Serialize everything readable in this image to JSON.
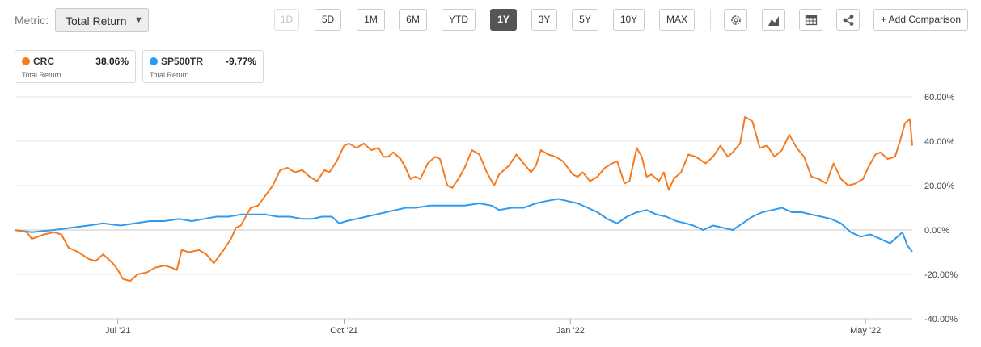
{
  "toolbar": {
    "metric_label": "Metric:",
    "metric_value": "Total Return",
    "periods": [
      "1D",
      "5D",
      "1M",
      "6M",
      "YTD",
      "1Y",
      "3Y",
      "5Y",
      "10Y",
      "MAX"
    ],
    "active_period": "1Y",
    "disabled_period": "1D",
    "add_comparison": "+ Add Comparison",
    "icons": [
      "gear-icon",
      "area-chart-icon",
      "table-icon",
      "share-icon"
    ]
  },
  "legend": [
    {
      "ticker": "CRC",
      "value": "38.06%",
      "sub": "Total Return",
      "color": "#f47b20"
    },
    {
      "ticker": "SP500TR",
      "value": "-9.77%",
      "sub": "Total Return",
      "color": "#2e9bf0"
    }
  ],
  "chart_data": {
    "type": "line",
    "ylim": [
      -40,
      60
    ],
    "y_ticks": [
      60,
      40,
      20,
      0,
      -20,
      -40
    ],
    "y_tick_labels": [
      "60.00%",
      "40.00%",
      "20.00%",
      "0.00%",
      "-20.00%",
      "-40.00%"
    ],
    "x_ticks": [
      "Jul '21",
      "Oct '21",
      "Jan '22",
      "May '22"
    ],
    "x_tick_positions": [
      "2021-07-01",
      "2021-10-01",
      "2022-01-01",
      "2022-05-01"
    ],
    "x_range": [
      "2021-05-20",
      "2022-05-20"
    ],
    "grid": true,
    "series": [
      {
        "name": "CRC",
        "color": "#f47b20",
        "points": [
          [
            "2021-05-20",
            0
          ],
          [
            "2021-05-25",
            -1
          ],
          [
            "2021-05-27",
            -4
          ],
          [
            "2021-06-01",
            -2
          ],
          [
            "2021-06-05",
            -1
          ],
          [
            "2021-06-08",
            -2
          ],
          [
            "2021-06-11",
            -8
          ],
          [
            "2021-06-15",
            -10
          ],
          [
            "2021-06-19",
            -13
          ],
          [
            "2021-06-22",
            -14
          ],
          [
            "2021-06-25",
            -11
          ],
          [
            "2021-06-29",
            -15
          ],
          [
            "2021-07-01",
            -18
          ],
          [
            "2021-07-03",
            -22
          ],
          [
            "2021-07-06",
            -23
          ],
          [
            "2021-07-09",
            -20
          ],
          [
            "2021-07-13",
            -19
          ],
          [
            "2021-07-16",
            -17
          ],
          [
            "2021-07-20",
            -16
          ],
          [
            "2021-07-23",
            -17
          ],
          [
            "2021-07-25",
            -18
          ],
          [
            "2021-07-27",
            -9
          ],
          [
            "2021-07-30",
            -10
          ],
          [
            "2021-08-03",
            -9
          ],
          [
            "2021-08-06",
            -11
          ],
          [
            "2021-08-09",
            -15
          ],
          [
            "2021-08-13",
            -9
          ],
          [
            "2021-08-16",
            -4
          ],
          [
            "2021-08-18",
            1
          ],
          [
            "2021-08-20",
            2
          ],
          [
            "2021-08-24",
            10
          ],
          [
            "2021-08-27",
            11
          ],
          [
            "2021-08-31",
            17
          ],
          [
            "2021-09-02",
            20
          ],
          [
            "2021-09-05",
            27
          ],
          [
            "2021-09-08",
            28
          ],
          [
            "2021-09-11",
            26
          ],
          [
            "2021-09-14",
            27
          ],
          [
            "2021-09-17",
            24
          ],
          [
            "2021-09-20",
            22
          ],
          [
            "2021-09-23",
            27
          ],
          [
            "2021-09-25",
            26
          ],
          [
            "2021-09-28",
            31
          ],
          [
            "2021-10-01",
            38
          ],
          [
            "2021-10-03",
            39
          ],
          [
            "2021-10-06",
            37
          ],
          [
            "2021-10-09",
            39
          ],
          [
            "2021-10-12",
            36
          ],
          [
            "2021-10-15",
            37
          ],
          [
            "2021-10-17",
            33
          ],
          [
            "2021-10-19",
            33
          ],
          [
            "2021-10-21",
            35
          ],
          [
            "2021-10-24",
            32
          ],
          [
            "2021-10-26",
            28
          ],
          [
            "2021-10-28",
            23
          ],
          [
            "2021-10-30",
            24
          ],
          [
            "2021-11-01",
            23
          ],
          [
            "2021-11-04",
            30
          ],
          [
            "2021-11-07",
            33
          ],
          [
            "2021-11-09",
            32
          ],
          [
            "2021-11-12",
            20
          ],
          [
            "2021-11-14",
            19
          ],
          [
            "2021-11-17",
            24
          ],
          [
            "2021-11-19",
            28
          ],
          [
            "2021-11-22",
            36
          ],
          [
            "2021-11-25",
            34
          ],
          [
            "2021-11-28",
            26
          ],
          [
            "2021-12-01",
            20
          ],
          [
            "2021-12-03",
            25
          ],
          [
            "2021-12-07",
            29
          ],
          [
            "2021-12-10",
            34
          ],
          [
            "2021-12-13",
            30
          ],
          [
            "2021-12-16",
            26
          ],
          [
            "2021-12-18",
            29
          ],
          [
            "2021-12-20",
            36
          ],
          [
            "2021-12-23",
            34
          ],
          [
            "2021-12-26",
            33
          ],
          [
            "2021-12-29",
            31
          ],
          [
            "2022-01-02",
            25
          ],
          [
            "2022-01-04",
            24
          ],
          [
            "2022-01-06",
            26
          ],
          [
            "2022-01-09",
            22
          ],
          [
            "2022-01-12",
            24
          ],
          [
            "2022-01-15",
            28
          ],
          [
            "2022-01-18",
            30
          ],
          [
            "2022-01-20",
            31
          ],
          [
            "2022-01-23",
            21
          ],
          [
            "2022-01-25",
            22
          ],
          [
            "2022-01-28",
            37
          ],
          [
            "2022-01-30",
            33
          ],
          [
            "2022-02-01",
            24
          ],
          [
            "2022-02-03",
            25
          ],
          [
            "2022-02-06",
            22
          ],
          [
            "2022-02-08",
            26
          ],
          [
            "2022-02-10",
            18
          ],
          [
            "2022-02-12",
            23
          ],
          [
            "2022-02-15",
            26
          ],
          [
            "2022-02-18",
            34
          ],
          [
            "2022-02-21",
            33
          ],
          [
            "2022-02-25",
            30
          ],
          [
            "2022-02-28",
            33
          ],
          [
            "2022-03-03",
            38
          ],
          [
            "2022-03-06",
            33
          ],
          [
            "2022-03-08",
            35
          ],
          [
            "2022-03-11",
            39
          ],
          [
            "2022-03-13",
            51
          ],
          [
            "2022-03-16",
            49
          ],
          [
            "2022-03-19",
            37
          ],
          [
            "2022-03-22",
            38
          ],
          [
            "2022-03-25",
            33
          ],
          [
            "2022-03-28",
            36
          ],
          [
            "2022-03-31",
            43
          ],
          [
            "2022-04-03",
            37
          ],
          [
            "2022-04-06",
            33
          ],
          [
            "2022-04-09",
            24
          ],
          [
            "2022-04-12",
            23
          ],
          [
            "2022-04-15",
            21
          ],
          [
            "2022-04-18",
            30
          ],
          [
            "2022-04-21",
            23
          ],
          [
            "2022-04-24",
            20
          ],
          [
            "2022-04-27",
            21
          ],
          [
            "2022-04-30",
            23
          ],
          [
            "2022-05-02",
            28
          ],
          [
            "2022-05-05",
            34
          ],
          [
            "2022-05-07",
            35
          ],
          [
            "2022-05-10",
            32
          ],
          [
            "2022-05-13",
            33
          ],
          [
            "2022-05-15",
            40
          ],
          [
            "2022-05-17",
            48
          ],
          [
            "2022-05-19",
            50
          ],
          [
            "2022-05-20",
            38
          ]
        ]
      },
      {
        "name": "SP500TR",
        "color": "#2e9bf0",
        "points": [
          [
            "2021-05-20",
            0
          ],
          [
            "2021-05-27",
            -1
          ],
          [
            "2021-06-05",
            0
          ],
          [
            "2021-06-12",
            1
          ],
          [
            "2021-06-19",
            2
          ],
          [
            "2021-06-25",
            3
          ],
          [
            "2021-07-02",
            2
          ],
          [
            "2021-07-08",
            3
          ],
          [
            "2021-07-14",
            4
          ],
          [
            "2021-07-20",
            4
          ],
          [
            "2021-07-26",
            5
          ],
          [
            "2021-07-31",
            4
          ],
          [
            "2021-08-05",
            5
          ],
          [
            "2021-08-10",
            6
          ],
          [
            "2021-08-15",
            6
          ],
          [
            "2021-08-20",
            7
          ],
          [
            "2021-08-25",
            7
          ],
          [
            "2021-08-30",
            7
          ],
          [
            "2021-09-04",
            6
          ],
          [
            "2021-09-09",
            6
          ],
          [
            "2021-09-14",
            5
          ],
          [
            "2021-09-18",
            5
          ],
          [
            "2021-09-22",
            6
          ],
          [
            "2021-09-26",
            6
          ],
          [
            "2021-09-29",
            3
          ],
          [
            "2021-10-02",
            4
          ],
          [
            "2021-10-06",
            5
          ],
          [
            "2021-10-10",
            6
          ],
          [
            "2021-10-14",
            7
          ],
          [
            "2021-10-18",
            8
          ],
          [
            "2021-10-22",
            9
          ],
          [
            "2021-10-26",
            10
          ],
          [
            "2021-10-30",
            10
          ],
          [
            "2021-11-05",
            11
          ],
          [
            "2021-11-12",
            11
          ],
          [
            "2021-11-19",
            11
          ],
          [
            "2021-11-25",
            12
          ],
          [
            "2021-11-30",
            11
          ],
          [
            "2021-12-03",
            9
          ],
          [
            "2021-12-08",
            10
          ],
          [
            "2021-12-13",
            10
          ],
          [
            "2021-12-18",
            12
          ],
          [
            "2021-12-22",
            13
          ],
          [
            "2021-12-27",
            14
          ],
          [
            "2021-12-31",
            13
          ],
          [
            "2022-01-04",
            12
          ],
          [
            "2022-01-08",
            10
          ],
          [
            "2022-01-12",
            8
          ],
          [
            "2022-01-16",
            5
          ],
          [
            "2022-01-20",
            3
          ],
          [
            "2022-01-24",
            6
          ],
          [
            "2022-01-28",
            8
          ],
          [
            "2022-02-01",
            9
          ],
          [
            "2022-02-05",
            7
          ],
          [
            "2022-02-09",
            6
          ],
          [
            "2022-02-13",
            4
          ],
          [
            "2022-02-17",
            3
          ],
          [
            "2022-02-20",
            2
          ],
          [
            "2022-02-24",
            0
          ],
          [
            "2022-02-28",
            2
          ],
          [
            "2022-03-04",
            1
          ],
          [
            "2022-03-08",
            0
          ],
          [
            "2022-03-12",
            3
          ],
          [
            "2022-03-16",
            6
          ],
          [
            "2022-03-20",
            8
          ],
          [
            "2022-03-24",
            9
          ],
          [
            "2022-03-28",
            10
          ],
          [
            "2022-04-01",
            8
          ],
          [
            "2022-04-05",
            8
          ],
          [
            "2022-04-09",
            7
          ],
          [
            "2022-04-13",
            6
          ],
          [
            "2022-04-17",
            5
          ],
          [
            "2022-04-21",
            3
          ],
          [
            "2022-04-25",
            -1
          ],
          [
            "2022-04-29",
            -3
          ],
          [
            "2022-05-03",
            -2
          ],
          [
            "2022-05-05",
            -3
          ],
          [
            "2022-05-07",
            -4
          ],
          [
            "2022-05-09",
            -5
          ],
          [
            "2022-05-11",
            -6
          ],
          [
            "2022-05-13",
            -4
          ],
          [
            "2022-05-15",
            -2
          ],
          [
            "2022-05-16",
            -1
          ],
          [
            "2022-05-18",
            -7
          ],
          [
            "2022-05-20",
            -9.77
          ]
        ]
      }
    ]
  }
}
